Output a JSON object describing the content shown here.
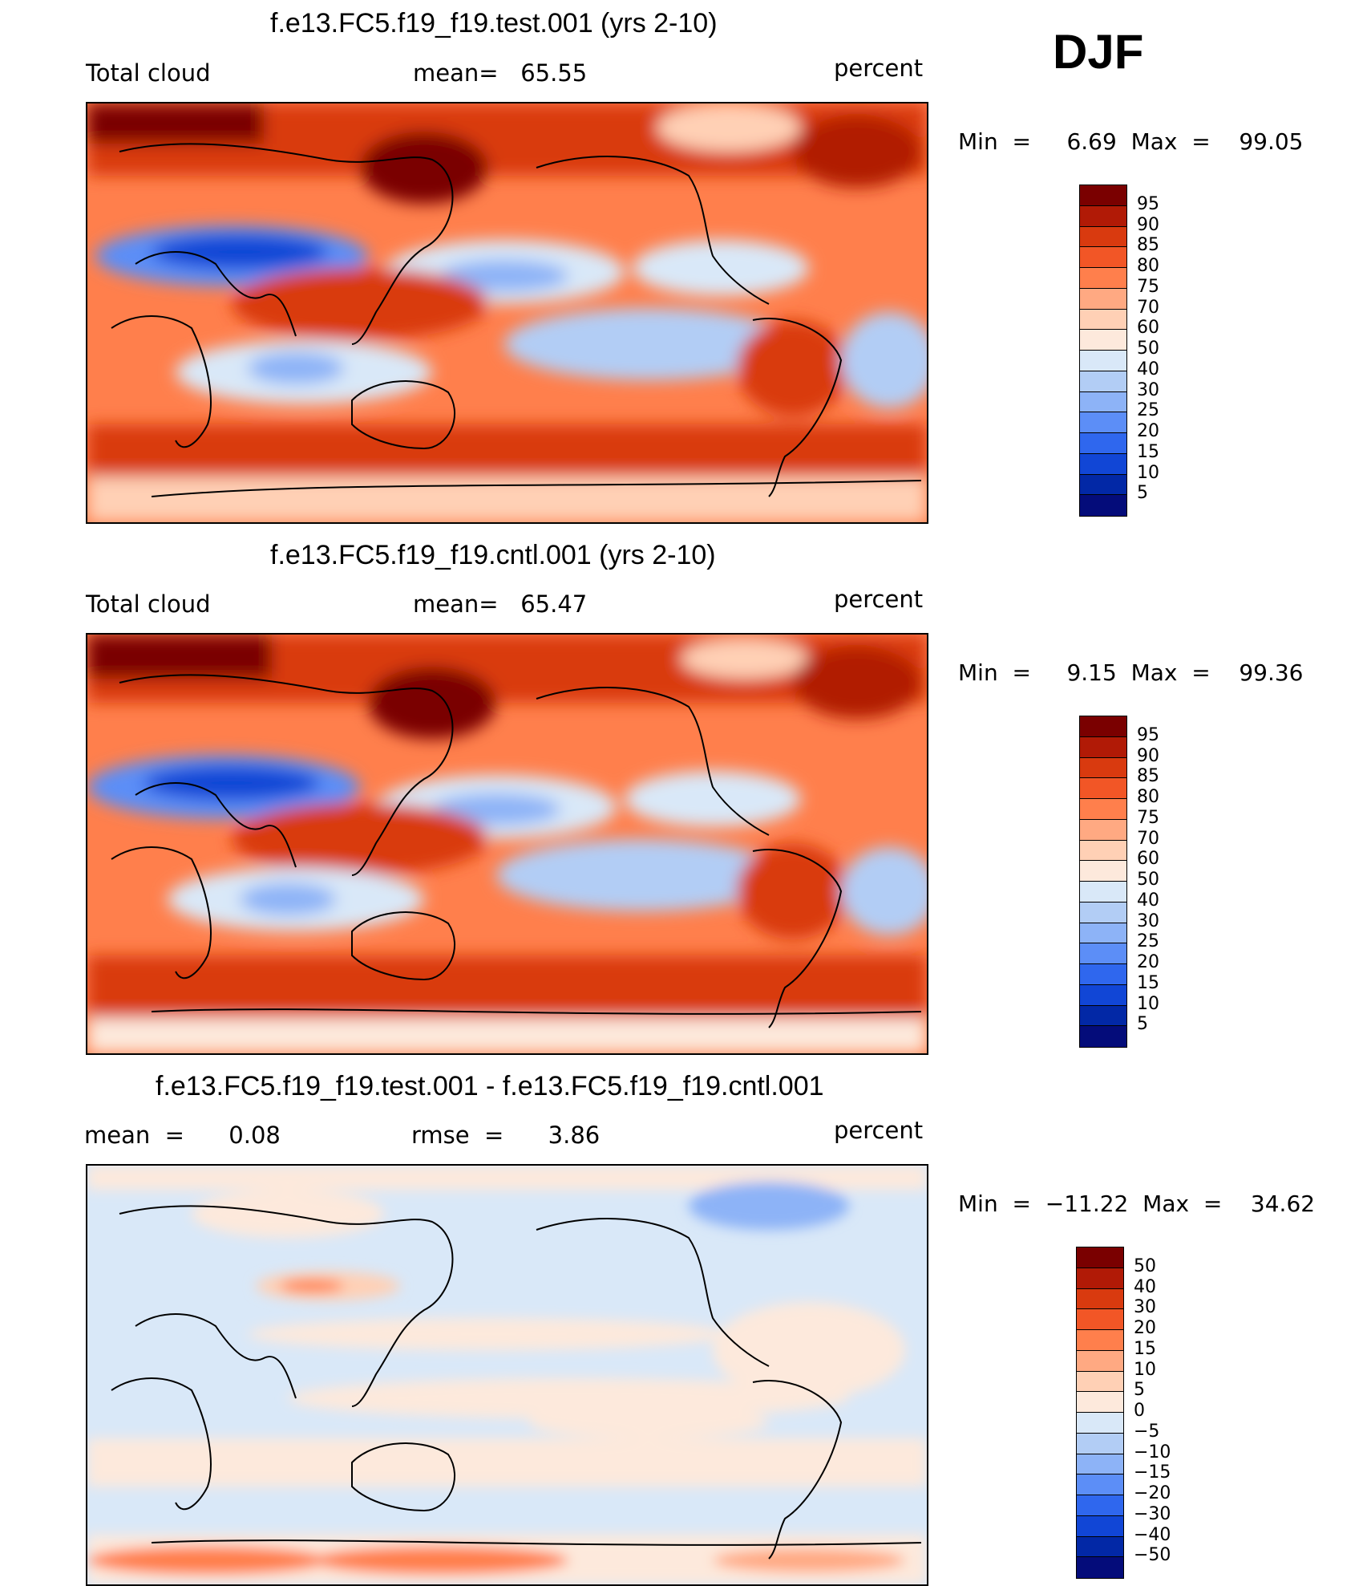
{
  "season": "DJF",
  "panels": [
    {
      "id": "test",
      "title": "f.e13.FC5.f19_f19.test.001 (yrs 2-10)",
      "left_label": "Total cloud",
      "center_label": "mean=   65.55",
      "right_label": "percent",
      "minmax": "Min  =     6.69  Max  =    99.05",
      "colorbar": {
        "colors": [
          "#7a0000",
          "#b11a06",
          "#d93a0f",
          "#f25626",
          "#ff7f4c",
          "#ffa982",
          "#ffd0b5",
          "#fde9dc",
          "#d9e8f8",
          "#b2cdf5",
          "#8db3f7",
          "#5c8ef7",
          "#2f67ee",
          "#1146d6",
          "#0228a6",
          "#040c7a"
        ],
        "labels": [
          "95",
          "90",
          "85",
          "80",
          "75",
          "70",
          "60",
          "50",
          "40",
          "30",
          "25",
          "20",
          "15",
          "10",
          "5"
        ]
      }
    },
    {
      "id": "cntl",
      "title": "f.e13.FC5.f19_f19.cntl.001 (yrs 2-10)",
      "left_label": "Total cloud",
      "center_label": "mean=   65.47",
      "right_label": "percent",
      "minmax": "Min  =     9.15  Max  =    99.36",
      "colorbar": {
        "colors": [
          "#7a0000",
          "#b11a06",
          "#d93a0f",
          "#f25626",
          "#ff7f4c",
          "#ffa982",
          "#ffd0b5",
          "#fde9dc",
          "#d9e8f8",
          "#b2cdf5",
          "#8db3f7",
          "#5c8ef7",
          "#2f67ee",
          "#1146d6",
          "#0228a6",
          "#040c7a"
        ],
        "labels": [
          "95",
          "90",
          "85",
          "80",
          "75",
          "70",
          "60",
          "50",
          "40",
          "30",
          "25",
          "20",
          "15",
          "10",
          "5"
        ]
      }
    },
    {
      "id": "diff",
      "title": "f.e13.FC5.f19_f19.test.001 - f.e13.FC5.f19_f19.cntl.001",
      "left_label": "mean  =      0.08",
      "center_label": "rmse  =      3.86",
      "right_label": "percent",
      "minmax": "Min  =  −11.22  Max  =    34.62",
      "colorbar": {
        "colors": [
          "#7a0000",
          "#b11a06",
          "#d93a0f",
          "#f25626",
          "#ff7f4c",
          "#ffa982",
          "#ffd0b5",
          "#fde9dc",
          "#d9e8f8",
          "#b2cdf5",
          "#8db3f7",
          "#5c8ef7",
          "#2f67ee",
          "#1146d6",
          "#0228a6",
          "#040c7a"
        ],
        "labels": [
          "50",
          "40",
          "30",
          "20",
          "15",
          "10",
          "5",
          "0",
          "−5",
          "−10",
          "−15",
          "−20",
          "−30",
          "−40",
          "−50"
        ]
      }
    }
  ]
}
